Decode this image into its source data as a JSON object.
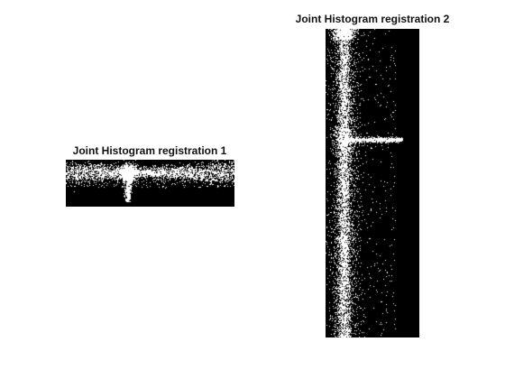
{
  "chart_data": [
    {
      "type": "heatmap",
      "title": "Joint Histogram registration 1",
      "colormap": "gray",
      "background_color": "#000000",
      "foreground_color": "#ffffff",
      "axes_visible": false,
      "grid": false,
      "pattern": "horizontal band of dense white points across the upper-middle, with a narrow vertical spike dropping near the center"
    },
    {
      "type": "heatmap",
      "title": "Joint Histogram registration 2",
      "colormap": "gray",
      "background_color": "#000000",
      "foreground_color": "#ffffff",
      "axes_visible": false,
      "grid": false,
      "pattern": "vertical band of white points down the left-center, with a horizontal spike extending right near the upper third"
    }
  ]
}
